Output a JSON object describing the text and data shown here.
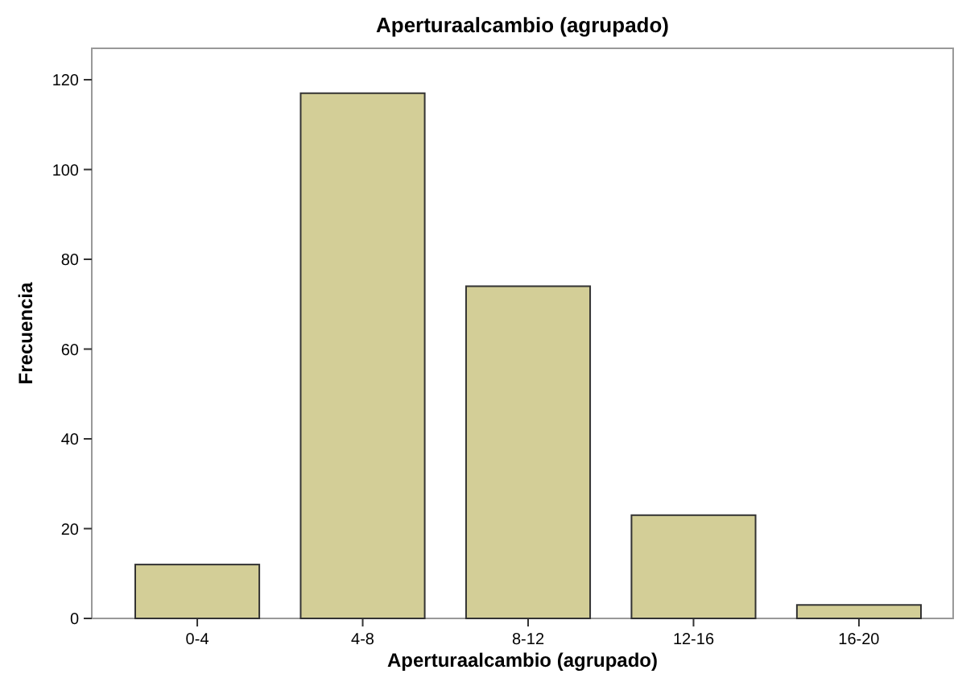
{
  "chart_data": {
    "type": "bar",
    "title": "Aperturaalcambio (agrupado)",
    "xlabel": "Aperturaalcambio (agrupado)",
    "ylabel": "Frecuencia",
    "categories": [
      "0-4",
      "4-8",
      "8-12",
      "12-16",
      "16-20"
    ],
    "values": [
      12,
      117,
      74,
      23,
      3
    ],
    "color": "#d3ce97",
    "ylim": [
      0,
      127
    ],
    "yticks": [
      0,
      20,
      40,
      60,
      80,
      100,
      120
    ],
    "grid": false
  }
}
